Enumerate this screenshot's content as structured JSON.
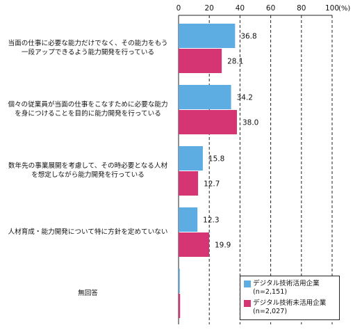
{
  "chart_data": {
    "type": "bar",
    "orientation": "horizontal",
    "categories": [
      [
        "当面の仕事に必要な能力だけでなく、その能力をもう",
        "一段アップできるよう能力開発を行っている"
      ],
      [
        "個々の従業員が当面の仕事をこなすために必要な能力",
        "を身につけることを目的に能力開発を行っている"
      ],
      [
        "数年先の事業展開を考慮して、その時必要となる人材",
        "を想定しながら能力開発を行っている"
      ],
      [
        "人材育成・能力開発について特に方針を定めていない"
      ],
      [
        "無回答"
      ]
    ],
    "series": [
      {
        "name": "デジタル技術活用企業",
        "n_label": "(n=2,151)",
        "color": "#5dade2",
        "values": [
          36.8,
          34.2,
          15.8,
          12.3,
          0.8
        ],
        "labels": [
          "36.8",
          "34.2",
          "15.8",
          "12.3",
          ""
        ]
      },
      {
        "name": "デジタル技術未活用企業",
        "n_label": "(n=2,027)",
        "color": "#d63574",
        "values": [
          28.1,
          38.0,
          12.7,
          19.9,
          1.0
        ],
        "labels": [
          "28.1",
          "38.0",
          "12.7",
          "19.9",
          ""
        ]
      }
    ],
    "xlim": [
      0,
      100
    ],
    "xticks": [
      "0",
      "20",
      "40",
      "60",
      "80",
      "100"
    ],
    "x_unit": "(%)",
    "grid": "dashed vertical",
    "legend_position": "bottom-right"
  }
}
